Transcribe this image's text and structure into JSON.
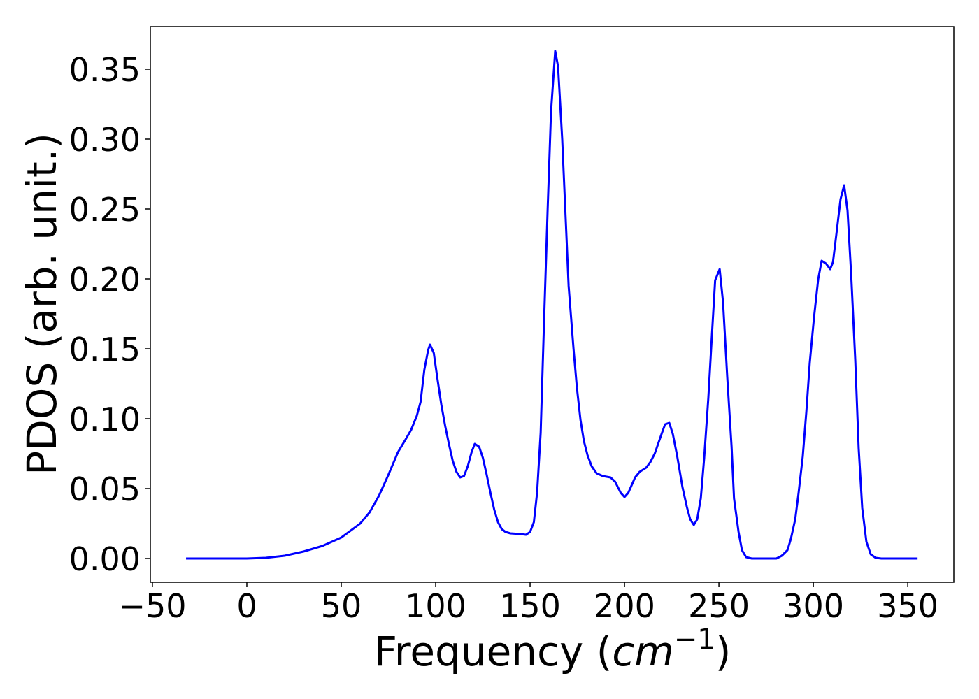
{
  "chart_data": {
    "type": "line",
    "x_label": [
      "Frequency (",
      "cm",
      "−1",
      ")"
    ],
    "y_label": "PDOS (arb. unit.)",
    "xlim": [
      -51.1,
      374.4
    ],
    "ylim": [
      -0.017,
      0.3805
    ],
    "xticks": [
      {
        "value": -50,
        "label": "−50"
      },
      0,
      50,
      100,
      150,
      200,
      250,
      300,
      350
    ],
    "yticks": [
      {
        "value": 0,
        "label": "0.00"
      },
      {
        "value": 0.05,
        "label": "0.05"
      },
      {
        "value": 0.1,
        "label": "0.10"
      },
      {
        "value": 0.15,
        "label": "0.15"
      },
      {
        "value": 0.2,
        "label": "0.20"
      },
      {
        "value": 0.25,
        "label": "0.25"
      },
      {
        "value": 0.3,
        "label": "0.30"
      },
      {
        "value": 0.35,
        "label": "0.35"
      }
    ],
    "grid": false,
    "series": [
      {
        "color": "#0000ff",
        "x": [
          -32.2,
          0,
          10,
          20,
          30,
          40,
          50,
          60,
          65,
          70,
          75,
          80,
          84,
          87,
          90,
          92,
          94,
          96,
          97,
          99,
          101,
          103,
          105,
          107,
          109,
          111,
          113,
          115,
          117,
          119,
          120.7,
          123,
          125,
          127,
          129,
          131,
          133,
          135,
          137,
          139.6,
          145,
          147.8,
          150,
          152,
          153.7,
          155.6,
          157.4,
          159.3,
          161.1,
          163.3,
          164.8,
          167,
          170.4,
          173,
          174.8,
          176.7,
          178.5,
          180.4,
          182.6,
          185.2,
          188.5,
          192.6,
          195,
          198,
          200,
          202,
          205.6,
          208,
          211.5,
          213.7,
          216,
          219.6,
          221.5,
          223.7,
          225.6,
          227.8,
          230.7,
          233,
          234.8,
          236.7,
          238.5,
          240.4,
          242.2,
          244.4,
          246.3,
          248,
          250.4,
          252.2,
          254.4,
          256.7,
          258,
          260.4,
          262.2,
          264.4,
          267.4,
          280.4,
          283.3,
          286.3,
          288.1,
          290.4,
          292.2,
          294.4,
          296.3,
          298.1,
          300.4,
          302.6,
          304.4,
          306.7,
          308.9,
          310.4,
          312.2,
          314.4,
          316.3,
          318.1,
          320,
          322.2,
          324,
          325.9,
          328.1,
          330.4,
          333,
          336,
          355.2
        ],
        "values": [
          0,
          0,
          0.0005,
          0.002,
          0.005,
          0.009,
          0.015,
          0.025,
          0.033,
          0.045,
          0.06,
          0.076,
          0.085,
          0.092,
          0.102,
          0.112,
          0.135,
          0.149,
          0.153,
          0.147,
          0.128,
          0.11,
          0.095,
          0.082,
          0.07,
          0.062,
          0.058,
          0.059,
          0.066,
          0.076,
          0.082,
          0.08,
          0.072,
          0.06,
          0.047,
          0.035,
          0.026,
          0.021,
          0.019,
          0.018,
          0.0175,
          0.017,
          0.019,
          0.026,
          0.047,
          0.09,
          0.17,
          0.25,
          0.32,
          0.363,
          0.352,
          0.3,
          0.195,
          0.15,
          0.122,
          0.099,
          0.084,
          0.074,
          0.066,
          0.061,
          0.059,
          0.058,
          0.055,
          0.047,
          0.044,
          0.047,
          0.058,
          0.062,
          0.065,
          0.069,
          0.075,
          0.089,
          0.096,
          0.097,
          0.089,
          0.074,
          0.051,
          0.037,
          0.028,
          0.024,
          0.028,
          0.043,
          0.072,
          0.115,
          0.16,
          0.199,
          0.207,
          0.183,
          0.13,
          0.08,
          0.043,
          0.019,
          0.006,
          0.001,
          0,
          0,
          0.002,
          0.006,
          0.014,
          0.028,
          0.047,
          0.073,
          0.105,
          0.14,
          0.173,
          0.2,
          0.213,
          0.211,
          0.207,
          0.212,
          0.232,
          0.257,
          0.267,
          0.249,
          0.204,
          0.142,
          0.079,
          0.036,
          0.012,
          0.003,
          0.0005,
          0,
          0
        ]
      }
    ]
  }
}
